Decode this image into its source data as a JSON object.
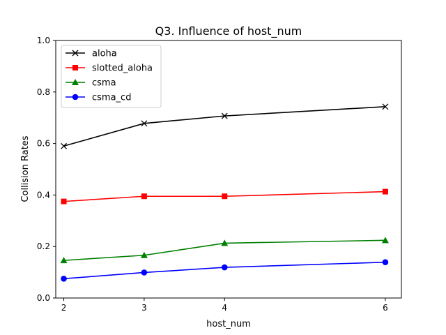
{
  "chart_data": {
    "type": "line",
    "title": "Q3. Influence of host_num",
    "xlabel": "host_num",
    "ylabel": "Collision Rates",
    "x": [
      2,
      3,
      4,
      6
    ],
    "xticks": [
      2,
      3,
      4,
      6
    ],
    "xlim": [
      1.9,
      6.2
    ],
    "ylim": [
      0.0,
      1.0
    ],
    "yticks": [
      0.0,
      0.2,
      0.4,
      0.6,
      0.8,
      1.0
    ],
    "ytick_labels": [
      "0.0",
      "0.2",
      "0.4",
      "0.6",
      "0.8",
      "1.0"
    ],
    "grid": false,
    "legend_position": "top-left",
    "series": [
      {
        "name": "aloha",
        "color": "#000000",
        "marker": "x",
        "values": [
          0.59,
          0.678,
          0.707,
          0.743
        ]
      },
      {
        "name": "slotted_aloha",
        "color": "#ff0000",
        "marker": "square",
        "values": [
          0.375,
          0.395,
          0.395,
          0.413
        ]
      },
      {
        "name": "csma",
        "color": "#008000",
        "marker": "triangle",
        "values": [
          0.146,
          0.166,
          0.213,
          0.224
        ]
      },
      {
        "name": "csma_cd",
        "color": "#0000ff",
        "marker": "circle",
        "values": [
          0.075,
          0.099,
          0.119,
          0.139
        ]
      }
    ]
  }
}
